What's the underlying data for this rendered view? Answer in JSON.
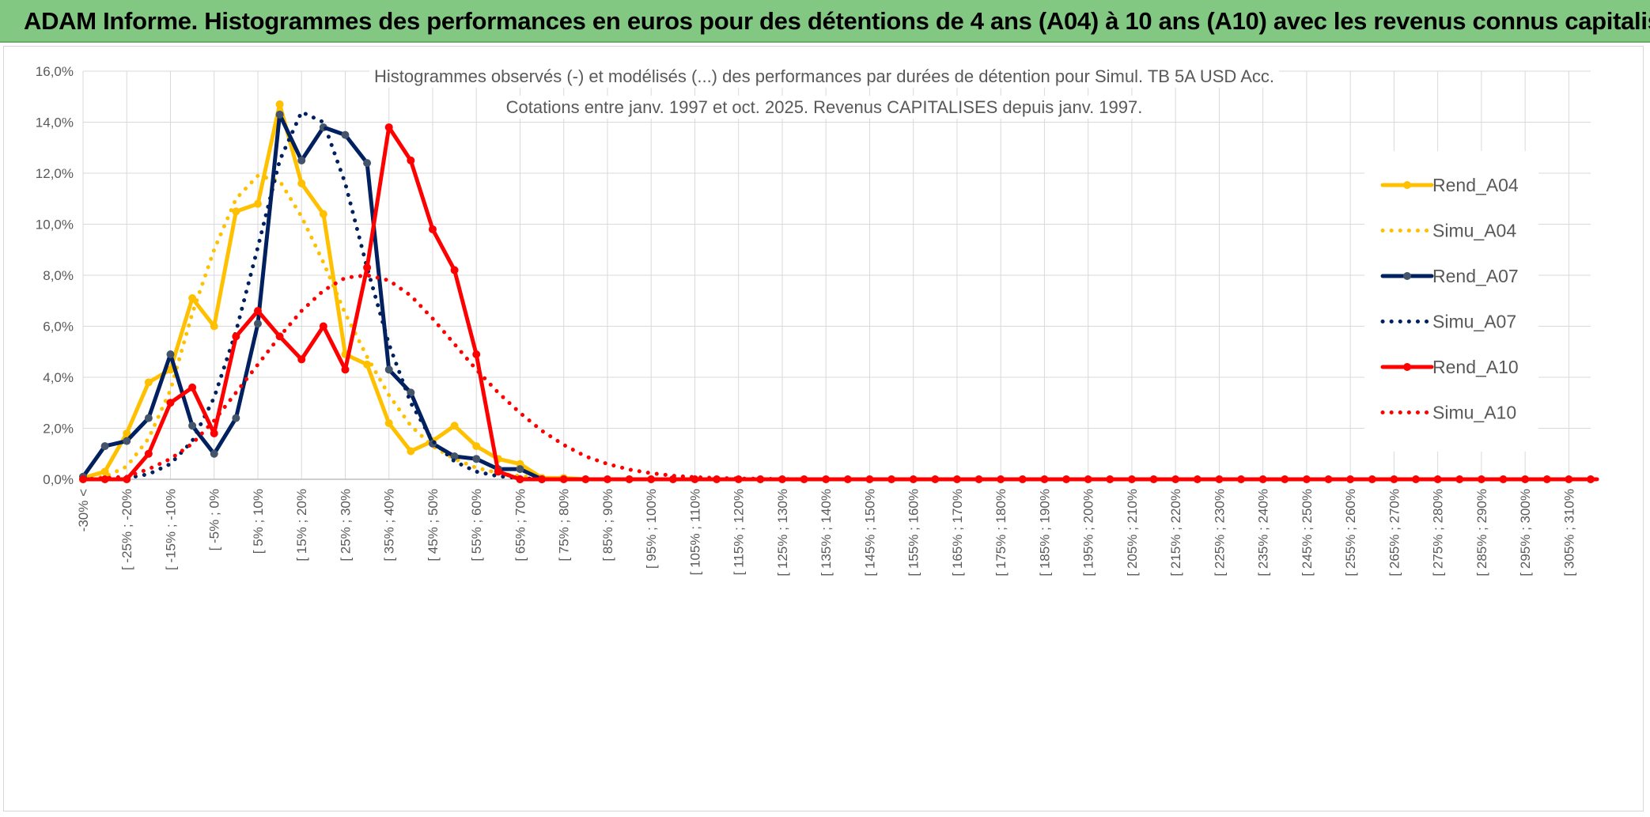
{
  "banner": {
    "title": "ADAM Informe. Histogrammes des performances en euros pour des détentions de 4 ans (A04) à 10 ans (A10) avec les revenus connus capitalisés",
    "color": "#82c882"
  },
  "chart_data": {
    "type": "line",
    "title_line1": "Histogrammes observés (-) et modélisés (...) des performances par durées de détention pour Simul. TB 5A USD Acc.",
    "title_line2": "Cotations entre janv. 1997 et oct. 2025. Revenus CAPITALISES depuis janv. 1997.",
    "ylim": [
      0,
      16
    ],
    "yticks": [
      "0,0%",
      "2,0%",
      "4,0%",
      "6,0%",
      "8,0%",
      "10,0%",
      "12,0%",
      "14,0%",
      "16,0%"
    ],
    "grid": true,
    "legend_position": "right",
    "categories": [
      "-30% <",
      "[ -25% ; -20%",
      "[ -15% ; -10%",
      "[ -5% ; 0%",
      "[ 5% ; 10%",
      "[ 15% ; 20%",
      "[ 25% ; 30%",
      "[ 35% ; 40%",
      "[ 45% ; 50%",
      "[ 55% ; 60%",
      "[ 65% ; 70%",
      "[ 75% ; 80%",
      "[ 85% ; 90%",
      "[ 95% ; 100%",
      "[ 105% ; 110%",
      "[ 115% ; 120%",
      "[ 125% ; 130%",
      "[ 135% ; 140%",
      "[ 145% ; 150%",
      "[ 155% ; 160%",
      "[ 165% ; 170%",
      "[ 175% ; 180%",
      "[ 185% ; 190%",
      "[ 195% ; 200%",
      "[ 205% ; 210%",
      "[ 215% ; 220%",
      "[ 225% ; 230%",
      "[ 235% ; 240%",
      "[ 245% ; 250%",
      "[ 255% ; 260%",
      "[ 265% ; 270%",
      "[ 275% ; 280%",
      "[ 285% ; 290%",
      "[ 295% ; 300%",
      "[ 305% ; 310%"
    ],
    "x_start": -30,
    "x_step": 5,
    "x_count": 70,
    "series": [
      {
        "name": "Rend_A04",
        "color": "#ffc000",
        "style": "solid",
        "points": [
          [
            -30,
            0.05
          ],
          [
            -25,
            0.3
          ],
          [
            -20,
            1.8
          ],
          [
            -15,
            3.8
          ],
          [
            -10,
            4.3
          ],
          [
            -5,
            7.1
          ],
          [
            0,
            6.0
          ],
          [
            5,
            10.5
          ],
          [
            10,
            10.8
          ],
          [
            15,
            14.7
          ],
          [
            20,
            11.6
          ],
          [
            25,
            10.4
          ],
          [
            30,
            4.9
          ],
          [
            35,
            4.5
          ],
          [
            40,
            2.2
          ],
          [
            45,
            1.1
          ],
          [
            50,
            1.5
          ],
          [
            55,
            2.1
          ],
          [
            60,
            1.3
          ],
          [
            65,
            0.8
          ],
          [
            70,
            0.6
          ],
          [
            75,
            0.05
          ],
          [
            80,
            0.05
          ],
          [
            85,
            0
          ]
        ]
      },
      {
        "name": "Simu_A04",
        "color": "#ffc000",
        "style": "dotted",
        "points": [
          [
            -30,
            0
          ],
          [
            -25,
            0.1
          ],
          [
            -20,
            0.5
          ],
          [
            -15,
            1.6
          ],
          [
            -10,
            3.5
          ],
          [
            -5,
            6.5
          ],
          [
            0,
            9.0
          ],
          [
            5,
            11.0
          ],
          [
            10,
            11.9
          ],
          [
            15,
            11.7
          ],
          [
            20,
            10.3
          ],
          [
            25,
            8.5
          ],
          [
            30,
            6.5
          ],
          [
            35,
            4.8
          ],
          [
            40,
            3.3
          ],
          [
            45,
            2.1
          ],
          [
            50,
            1.3
          ],
          [
            55,
            0.8
          ],
          [
            60,
            0.45
          ],
          [
            65,
            0.25
          ],
          [
            70,
            0.12
          ],
          [
            75,
            0.06
          ],
          [
            80,
            0.02
          ],
          [
            85,
            0
          ]
        ]
      },
      {
        "name": "Rend_A07",
        "color": "#002060",
        "style": "solid",
        "points": [
          [
            -30,
            0.1
          ],
          [
            -25,
            1.3
          ],
          [
            -20,
            1.5
          ],
          [
            -15,
            2.4
          ],
          [
            -10,
            4.9
          ],
          [
            -5,
            2.1
          ],
          [
            0,
            1.0
          ],
          [
            5,
            2.4
          ],
          [
            10,
            6.1
          ],
          [
            15,
            14.3
          ],
          [
            20,
            12.5
          ],
          [
            25,
            13.8
          ],
          [
            30,
            13.5
          ],
          [
            35,
            12.4
          ],
          [
            40,
            4.3
          ],
          [
            45,
            3.4
          ],
          [
            50,
            1.4
          ],
          [
            55,
            0.9
          ],
          [
            60,
            0.8
          ],
          [
            65,
            0.4
          ],
          [
            70,
            0.4
          ],
          [
            75,
            0
          ]
        ]
      },
      {
        "name": "Simu_A07",
        "color": "#002060",
        "style": "dotted",
        "points": [
          [
            -30,
            0
          ],
          [
            -25,
            0
          ],
          [
            -20,
            0.05
          ],
          [
            -15,
            0.2
          ],
          [
            -10,
            0.6
          ],
          [
            -5,
            1.5
          ],
          [
            0,
            3.2
          ],
          [
            5,
            5.8
          ],
          [
            10,
            9.1
          ],
          [
            15,
            12.5
          ],
          [
            20,
            14.4
          ],
          [
            25,
            14.0
          ],
          [
            30,
            11.6
          ],
          [
            35,
            8.3
          ],
          [
            40,
            5.3
          ],
          [
            45,
            3.0
          ],
          [
            50,
            1.5
          ],
          [
            55,
            0.7
          ],
          [
            60,
            0.3
          ],
          [
            65,
            0.12
          ],
          [
            70,
            0.05
          ],
          [
            75,
            0
          ]
        ]
      },
      {
        "name": "Rend_A10",
        "color": "#ff0000",
        "style": "solid",
        "points": [
          [
            -30,
            0
          ],
          [
            -25,
            0
          ],
          [
            -20,
            0
          ],
          [
            -15,
            1.0
          ],
          [
            -10,
            3.0
          ],
          [
            -5,
            3.6
          ],
          [
            0,
            1.8
          ],
          [
            5,
            5.6
          ],
          [
            10,
            6.6
          ],
          [
            15,
            5.6
          ],
          [
            20,
            4.7
          ],
          [
            25,
            6.0
          ],
          [
            30,
            4.3
          ],
          [
            35,
            8.3
          ],
          [
            40,
            13.8
          ],
          [
            45,
            12.5
          ],
          [
            50,
            9.8
          ],
          [
            55,
            8.2
          ],
          [
            60,
            4.9
          ],
          [
            65,
            0.3
          ],
          [
            70,
            0
          ]
        ]
      },
      {
        "name": "Simu_A10",
        "color": "#ff0000",
        "style": "dotted",
        "points": [
          [
            -30,
            0
          ],
          [
            -25,
            0.05
          ],
          [
            -20,
            0.1
          ],
          [
            -15,
            0.4
          ],
          [
            -10,
            0.8
          ],
          [
            -5,
            1.4
          ],
          [
            0,
            2.3
          ],
          [
            5,
            3.4
          ],
          [
            10,
            4.5
          ],
          [
            15,
            5.6
          ],
          [
            20,
            6.6
          ],
          [
            25,
            7.4
          ],
          [
            30,
            7.9
          ],
          [
            35,
            8.0
          ],
          [
            40,
            7.8
          ],
          [
            45,
            7.2
          ],
          [
            50,
            6.3
          ],
          [
            55,
            5.3
          ],
          [
            60,
            4.3
          ],
          [
            65,
            3.4
          ],
          [
            70,
            2.6
          ],
          [
            75,
            1.9
          ],
          [
            80,
            1.35
          ],
          [
            85,
            0.9
          ],
          [
            90,
            0.6
          ],
          [
            95,
            0.38
          ],
          [
            100,
            0.24
          ],
          [
            105,
            0.14
          ],
          [
            110,
            0.08
          ],
          [
            115,
            0.05
          ],
          [
            120,
            0.03
          ],
          [
            125,
            0.02
          ],
          [
            130,
            0.01
          ],
          [
            135,
            0
          ]
        ]
      }
    ],
    "flat_marker_series": "Rend_A10",
    "flat_marker_from": 70,
    "flat_marker_to": 315
  }
}
